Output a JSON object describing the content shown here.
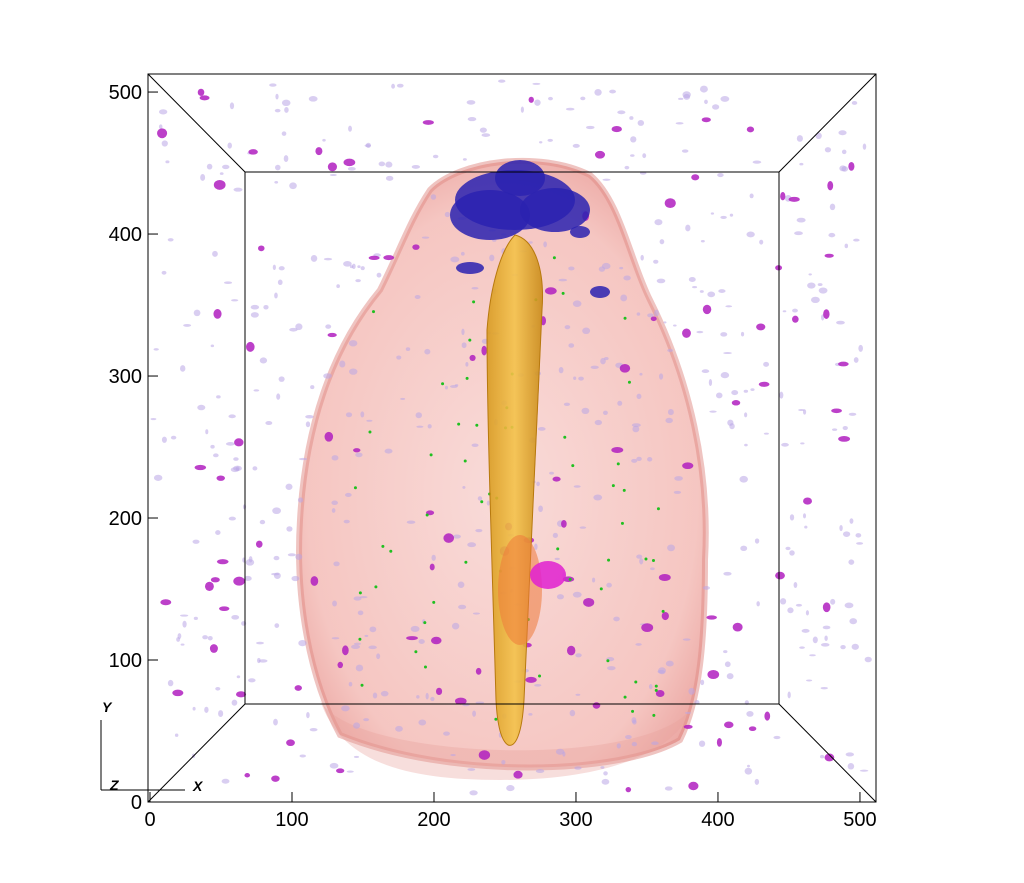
{
  "chart_data": {
    "type": "volume",
    "xlim": [
      0,
      512
    ],
    "ylim": [
      0,
      512
    ],
    "xticks": [
      0,
      100,
      200,
      300,
      400,
      500
    ],
    "yticks": [
      0,
      100,
      200,
      300,
      400,
      500
    ],
    "x_label": "X",
    "y_label": "Y",
    "z_label": "Z"
  }
}
